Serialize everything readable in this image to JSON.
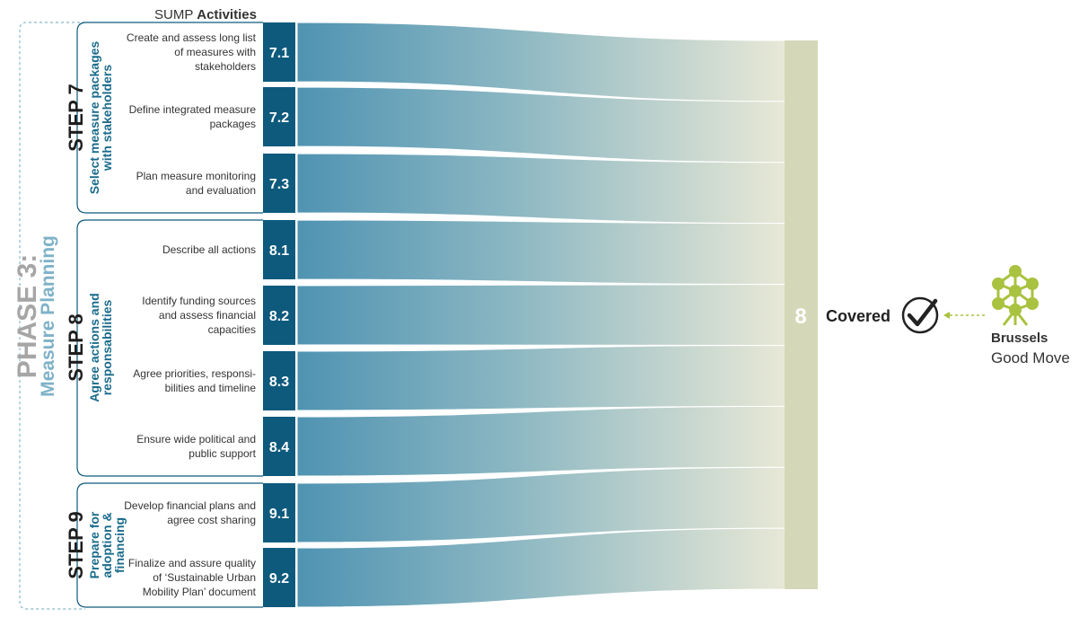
{
  "header": {
    "prefix": "SUMP",
    "title": "Activities"
  },
  "phase": {
    "label": "PHASE 3:",
    "name": "Measure Planning"
  },
  "steps": [
    {
      "label": "STEP 7",
      "title_lines": [
        "Select measure packages",
        "with stakeholders"
      ]
    },
    {
      "label": "STEP 8",
      "title_lines": [
        "Agree actions and",
        "responsabilities"
      ]
    },
    {
      "label": "STEP 9",
      "title_lines": [
        "Prepare for",
        "adoption &",
        "financing"
      ]
    }
  ],
  "activities": [
    {
      "code": "7.1",
      "lines": [
        "Create and assess long list",
        "of measures with",
        "stakeholders"
      ]
    },
    {
      "code": "7.2",
      "lines": [
        "Define integrated measure",
        "packages"
      ]
    },
    {
      "code": "7.3",
      "lines": [
        "Plan measure monitoring",
        "and evaluation"
      ]
    },
    {
      "code": "8.1",
      "lines": [
        "Describe all actions"
      ]
    },
    {
      "code": "8.2",
      "lines": [
        "Identify funding sources",
        "and assess financial",
        "capacities"
      ]
    },
    {
      "code": "8.3",
      "lines": [
        "Agree priorities, responsi-",
        "bilities and timeline"
      ]
    },
    {
      "code": "8.4",
      "lines": [
        "Ensure wide political and",
        "public support"
      ]
    },
    {
      "code": "9.1",
      "lines": [
        "Develop financial plans and",
        "agree cost sharing"
      ]
    },
    {
      "code": "9.2",
      "lines": [
        "Finalize and assure quality",
        "of ‘Sustainable Urban",
        "Mobility Plan’ document"
      ]
    }
  ],
  "target": {
    "label": "8",
    "status": "Covered"
  },
  "brand": {
    "line1": "Brussels",
    "line2": "Good Move"
  },
  "colors": {
    "code_box": "#0d5a7d",
    "step_text": "#1a6b8c",
    "phase_gray": "#a6a6a6",
    "phase_blue": "#7fb2c7",
    "flow_start": "#4f93b2",
    "flow_end": "#e8e8d6",
    "target_bar": "#d5d8b8",
    "brand_green": "#a9c23f"
  }
}
